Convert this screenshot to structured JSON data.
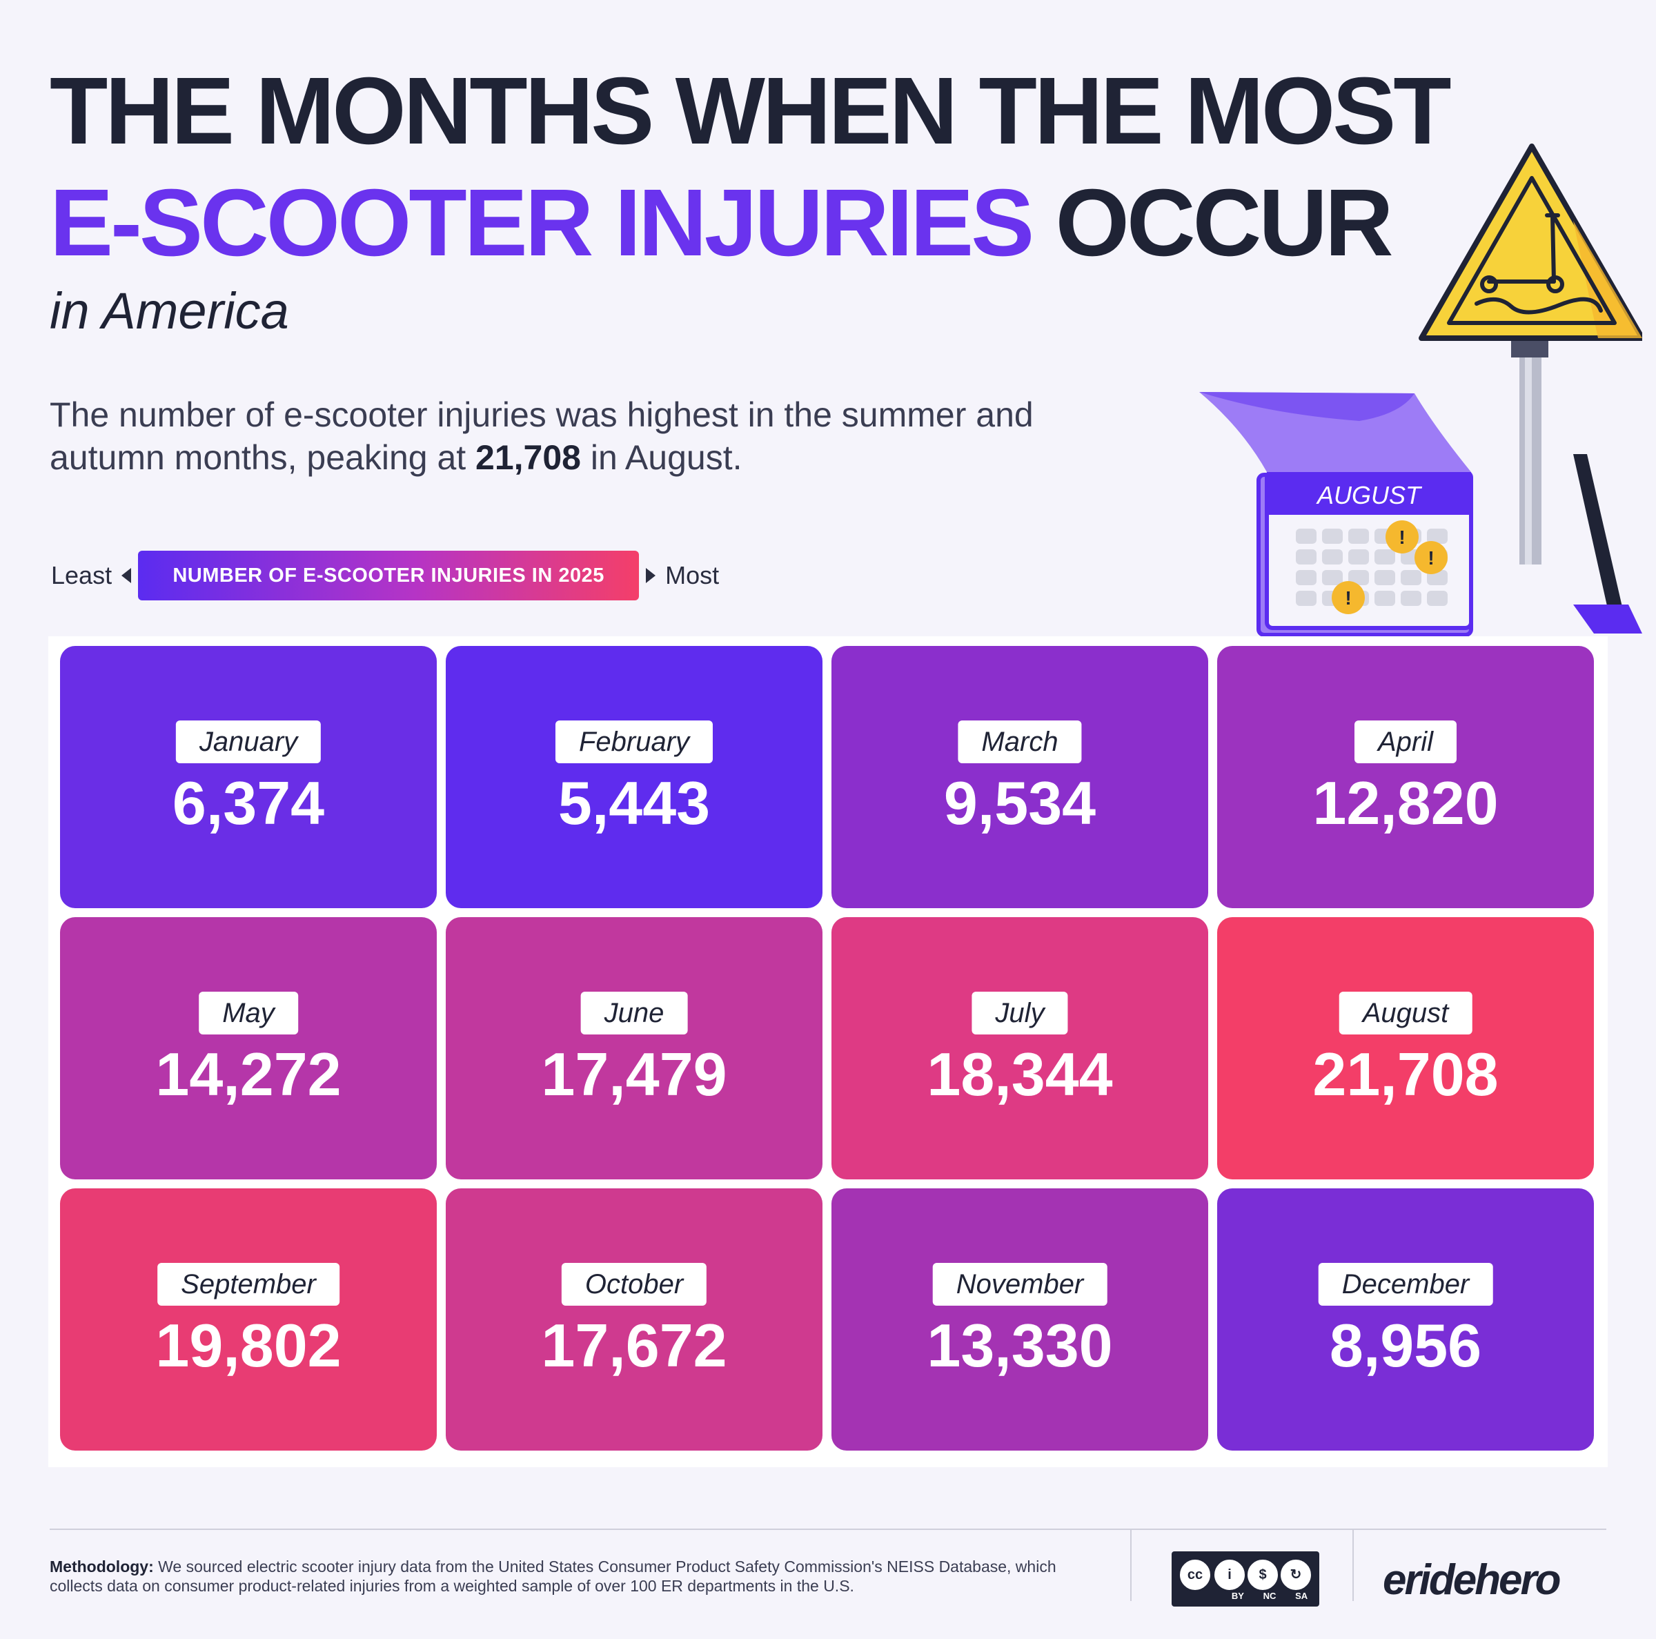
{
  "title": {
    "line1": "THE MONTHS WHEN THE MOST",
    "line2_highlight": "E-SCOOTER INJURIES",
    "line2_rest": "OCCUR",
    "subtitle": "in America"
  },
  "description": {
    "part1": "The number of e-scooter injuries was highest in the summer and autumn months, peaking at ",
    "peak": "21,708",
    "part2": " in August."
  },
  "legend": {
    "least": "Least",
    "label": "NUMBER OF E-SCOOTER INJURIES IN 2025",
    "most": "Most",
    "color_low": "#5b2cf0",
    "color_mid": "#b534c6",
    "color_high": "#f43f69"
  },
  "illustration": {
    "calendar_month": "AUGUST",
    "icons": [
      "warning-sign-icon",
      "scooter-icon",
      "calendar-icon",
      "alert-icon"
    ]
  },
  "chart_data": {
    "type": "heatmap",
    "categories": [
      "January",
      "February",
      "March",
      "April",
      "May",
      "June",
      "July",
      "August",
      "September",
      "October",
      "November",
      "December"
    ],
    "values": [
      6374,
      5443,
      9534,
      12820,
      14272,
      17479,
      18344,
      21708,
      19802,
      17672,
      13330,
      8956
    ],
    "labels": [
      "6,374",
      "5,443",
      "9,534",
      "12,820",
      "14,272",
      "17,479",
      "18,344",
      "21,708",
      "19,802",
      "17,672",
      "13,330",
      "8,956"
    ],
    "colors": [
      "#6a2ee6",
      "#5f2cee",
      "#8b2fcc",
      "#9c33bf",
      "#b536a9",
      "#c1389e",
      "#de3a84",
      "#f33e68",
      "#e83c73",
      "#cf3a8f",
      "#a433b3",
      "#7a2ed6"
    ],
    "columns": 4
  },
  "footer": {
    "methodology_label": "Methodology:",
    "methodology_text": " We sourced electric scooter injury data from the United States Consumer Product Safety Commission's NEISS Database, which collects data on consumer product-related injuries from a weighted sample of over 100 ER departments in the U.S.",
    "license_symbols": [
      "cc",
      "i",
      "$",
      "↻"
    ],
    "license_tags": [
      "BY",
      "NC",
      "SA"
    ],
    "brand": "eridehero"
  }
}
